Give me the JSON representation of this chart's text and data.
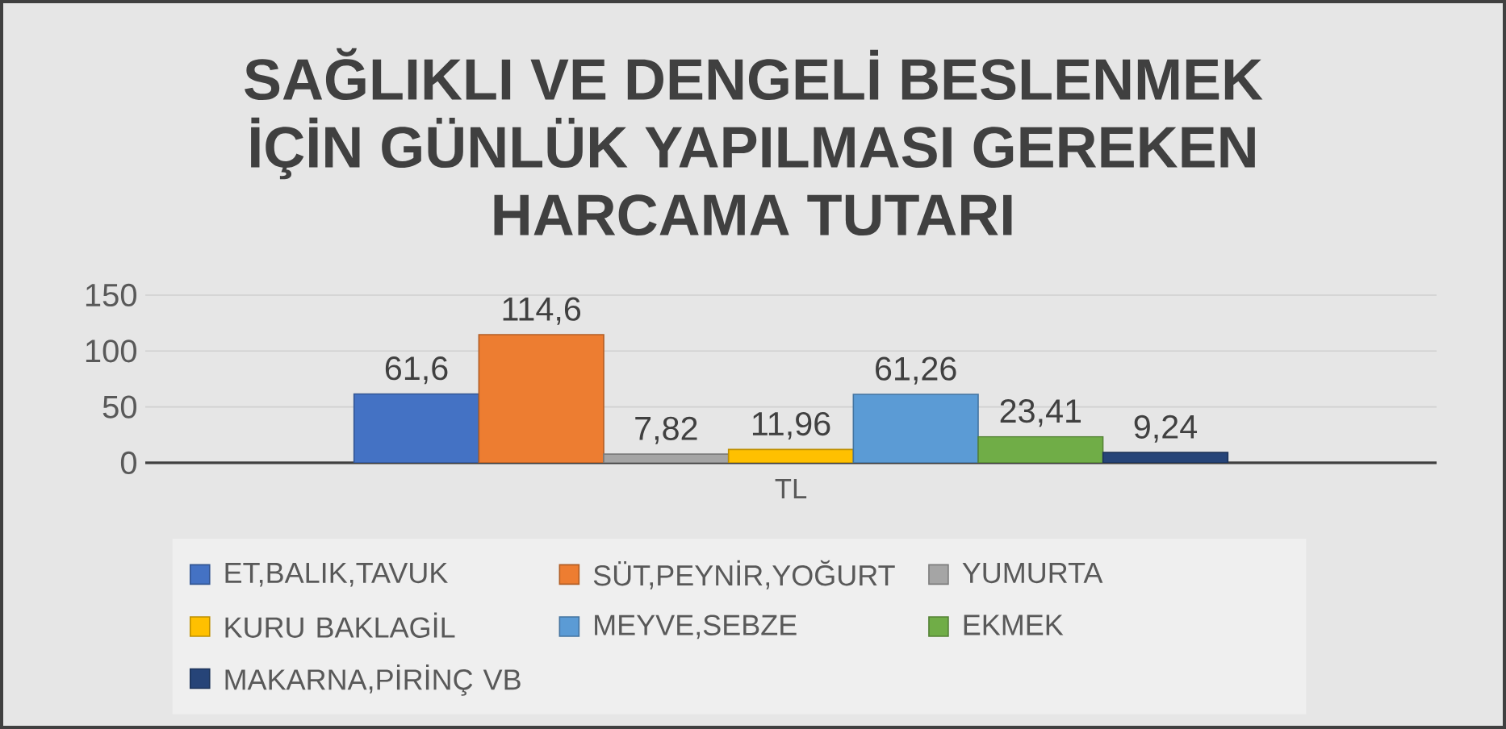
{
  "chart_data": {
    "type": "bar",
    "title": "SAĞLIKLI VE DENGELİ BESLENMEK İÇİN GÜNLÜK YAPILMASI GEREKEN HARCAMA TUTARI",
    "categories": [
      "TL"
    ],
    "series": [
      {
        "name": "ET,BALIK,TAVUK",
        "color": "#4472c4",
        "values": [
          61.6
        ],
        "value_labels": [
          "61,6"
        ]
      },
      {
        "name": "SÜT,PEYNİR,YOĞURT",
        "color": "#ed7d31",
        "values": [
          114.6
        ],
        "value_labels": [
          "114,6"
        ]
      },
      {
        "name": "YUMURTA",
        "color": "#a5a5a5",
        "values": [
          7.82
        ],
        "value_labels": [
          "7,82"
        ]
      },
      {
        "name": "KURU BAKLAGİL",
        "color": "#ffc000",
        "values": [
          11.96
        ],
        "value_labels": [
          "11,96"
        ]
      },
      {
        "name": "MEYVE,SEBZE",
        "color": "#5b9bd5",
        "values": [
          61.26
        ],
        "value_labels": [
          "61,26"
        ]
      },
      {
        "name": "EKMEK",
        "color": "#70ad47",
        "values": [
          23.41
        ],
        "value_labels": [
          "23,41"
        ]
      },
      {
        "name": "MAKARNA,PİRİNÇ VB",
        "color": "#264478",
        "values": [
          9.24
        ],
        "value_labels": [
          "9,24"
        ]
      }
    ],
    "ylim": [
      0,
      150
    ],
    "yticks": [
      0,
      50,
      100,
      150
    ],
    "grid": "y",
    "legend": "bottom"
  }
}
